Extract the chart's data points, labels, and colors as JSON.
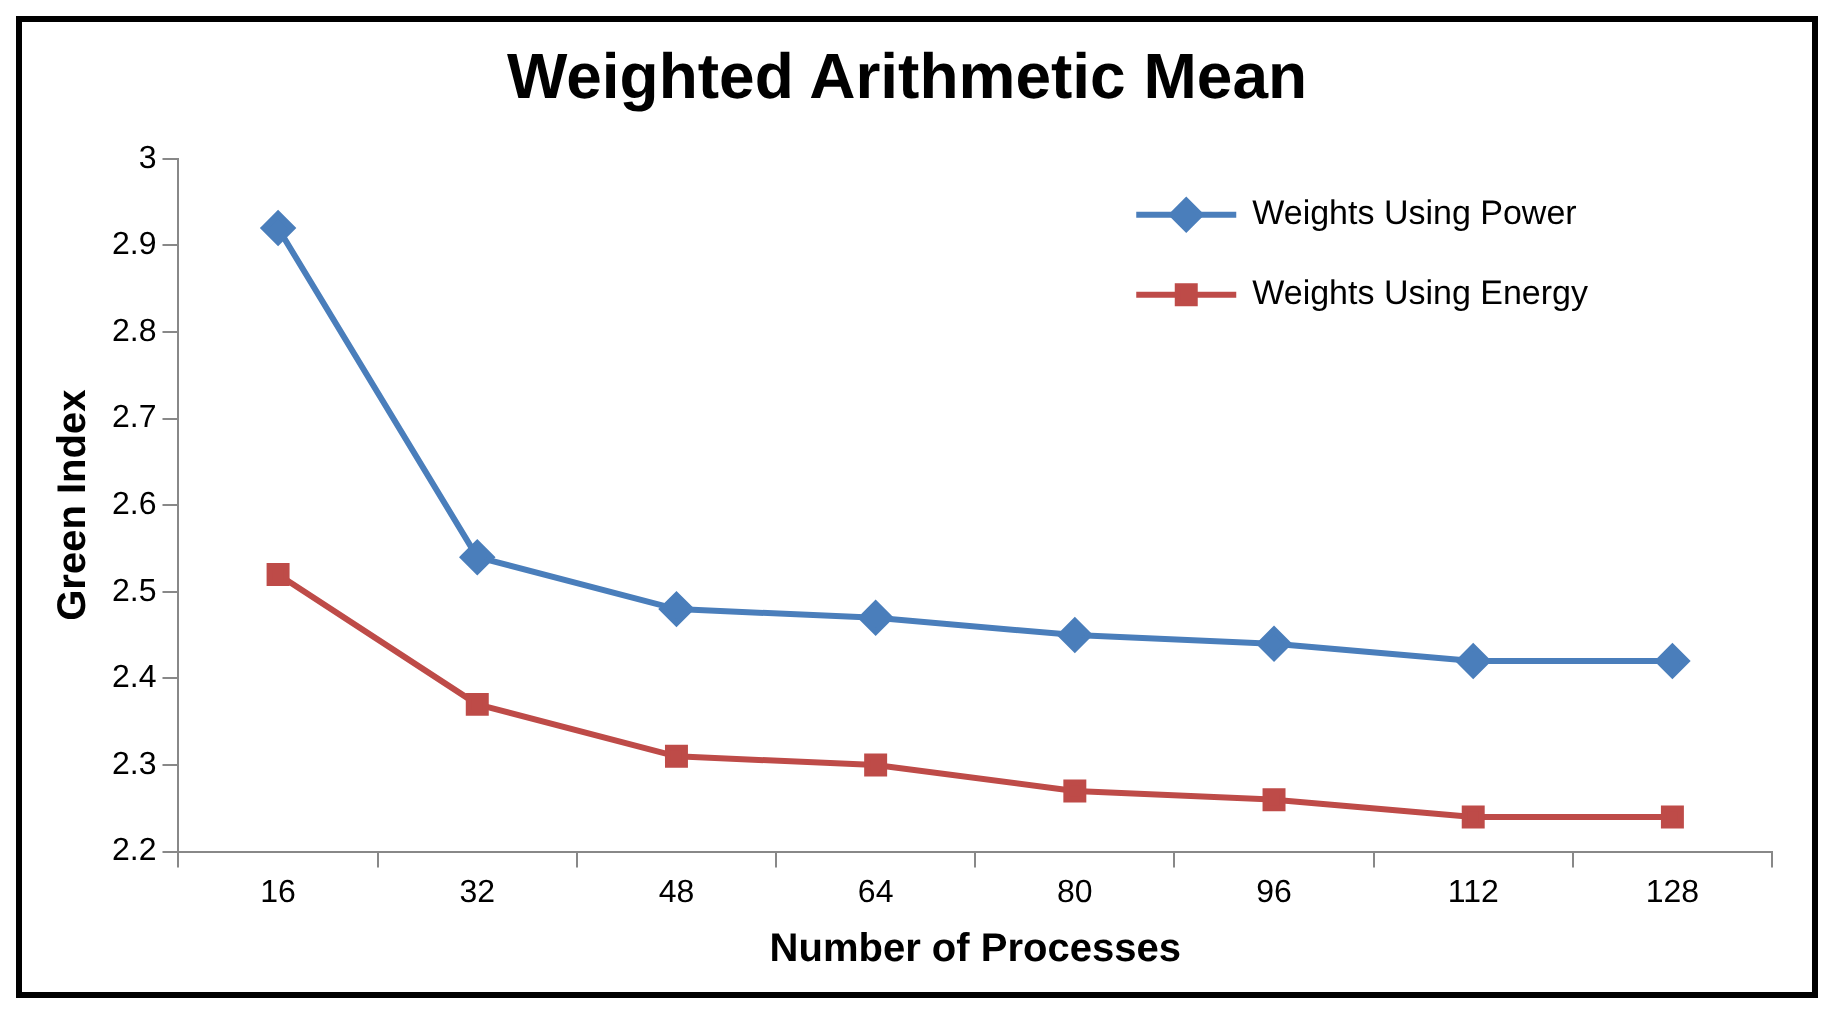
{
  "chart_data": {
    "type": "line",
    "title": "Weighted Arithmetic Mean",
    "xlabel": "Number of Processes",
    "ylabel": "Green Index",
    "categories": [
      "16",
      "32",
      "48",
      "64",
      "80",
      "96",
      "112",
      "128"
    ],
    "series": [
      {
        "name": "Weights Using Power",
        "color": "#4a7ebb",
        "marker": "diamond",
        "values": [
          2.92,
          2.54,
          2.48,
          2.47,
          2.45,
          2.44,
          2.42,
          2.42
        ]
      },
      {
        "name": "Weights Using Energy",
        "color": "#be4b48",
        "marker": "square",
        "values": [
          2.52,
          2.37,
          2.31,
          2.3,
          2.27,
          2.26,
          2.24,
          2.24
        ]
      }
    ],
    "ylim": [
      2.2,
      3
    ],
    "yticks": [
      2.2,
      2.3,
      2.4,
      2.5,
      2.6,
      2.7,
      2.8,
      2.9,
      3
    ],
    "grid": false,
    "legend": "top right",
    "line_style": "solid"
  }
}
